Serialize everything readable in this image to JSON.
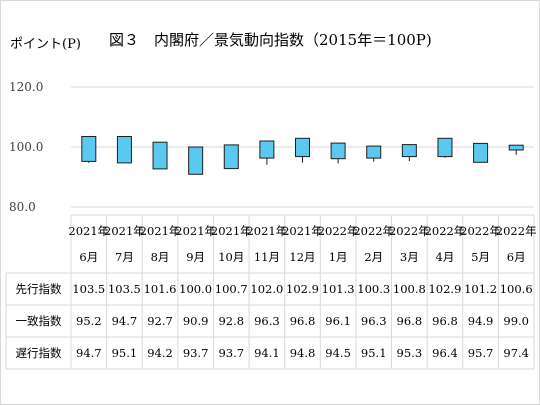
{
  "header": {
    "ylabel": "ポイント(P)",
    "title": "図３　内閣府／景気動向指数（2015年＝100P)"
  },
  "chart_data": {
    "type": "candlestick-table",
    "title": "図３　内閣府／景気動向指数（2015年＝100P)",
    "ylabel": "ポイント(P)",
    "ylim": [
      80,
      120
    ],
    "yticks": [
      "120.0",
      "100.0",
      "80.0"
    ],
    "categories": [
      {
        "year": "2021年",
        "month": "6月"
      },
      {
        "year": "2021年",
        "month": "7月"
      },
      {
        "year": "2021年",
        "month": "8月"
      },
      {
        "year": "2021年",
        "month": "9月"
      },
      {
        "year": "2021年",
        "month": "10月"
      },
      {
        "year": "2021年",
        "month": "11月"
      },
      {
        "year": "2021年",
        "month": "12月"
      },
      {
        "year": "2022年",
        "month": "1月"
      },
      {
        "year": "2022年",
        "month": "2月"
      },
      {
        "year": "2022年",
        "month": "3月"
      },
      {
        "year": "2022年",
        "month": "4月"
      },
      {
        "year": "2022年",
        "month": "5月"
      },
      {
        "year": "2022年",
        "month": "6月"
      }
    ],
    "series": [
      {
        "name": "先行指数",
        "values": [
          103.5,
          103.5,
          101.6,
          100.0,
          100.7,
          102.0,
          102.9,
          101.3,
          100.3,
          100.8,
          102.9,
          101.2,
          100.6
        ]
      },
      {
        "name": "一致指数",
        "values": [
          95.2,
          94.7,
          92.7,
          90.9,
          92.8,
          96.3,
          96.8,
          96.1,
          96.3,
          96.8,
          96.8,
          94.9,
          99.0
        ]
      },
      {
        "name": "遅行指数",
        "values": [
          94.7,
          95.1,
          94.2,
          93.7,
          93.7,
          94.1,
          94.8,
          94.5,
          95.1,
          95.3,
          96.4,
          95.7,
          97.4
        ]
      }
    ],
    "grid": true,
    "colors": {
      "box": "#5bc8f0",
      "box_stroke": "#1f1f1f",
      "grid": "#d9d9d9"
    }
  }
}
